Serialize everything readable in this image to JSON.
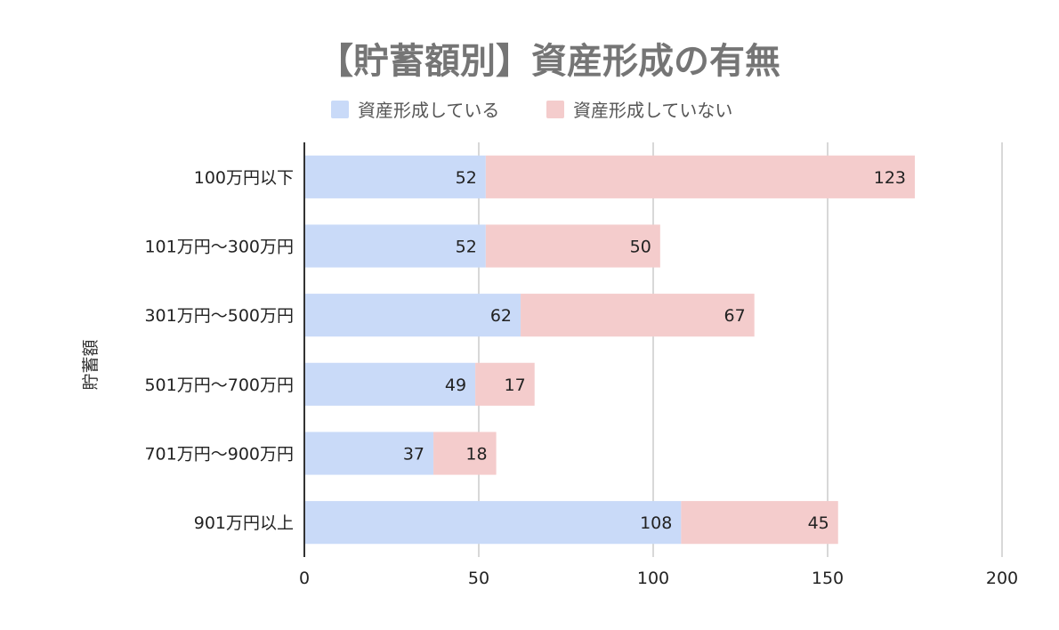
{
  "chart_data": {
    "type": "bar",
    "orientation": "horizontal",
    "stacked": true,
    "title": "【貯蓄額別】資産形成の有無",
    "ylabel": "貯蓄額",
    "xlabel": "",
    "categories": [
      "100万円以下",
      "101万円〜300万円",
      "301万円〜500万円",
      "501万円〜700万円",
      "701万円〜900万円",
      "901万円以上"
    ],
    "series": [
      {
        "name": "資産形成している",
        "values": [
          52,
          52,
          62,
          49,
          37,
          108
        ],
        "color": "#c9daf8"
      },
      {
        "name": "資産形成していない",
        "values": [
          123,
          50,
          67,
          17,
          18,
          45
        ],
        "color": "#f4cccc"
      }
    ],
    "xlim": [
      0,
      200
    ],
    "xticks": [
      0,
      50,
      100,
      150,
      200
    ],
    "grid": true,
    "legend": "top-center"
  }
}
